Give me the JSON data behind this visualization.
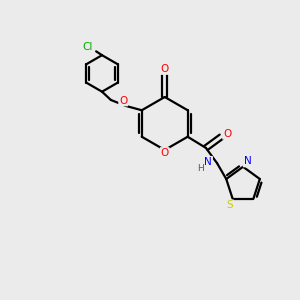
{
  "background_color": "#ebebeb",
  "bond_color": "#000000",
  "atom_colors": {
    "O": "#ff0000",
    "N": "#0000ff",
    "S": "#cccc00",
    "Cl": "#00aa00",
    "C": "#000000",
    "H": "#555555"
  },
  "figsize": [
    3.0,
    3.0
  ],
  "dpi": 100,
  "lw": 1.6,
  "fontsize": 7.5
}
